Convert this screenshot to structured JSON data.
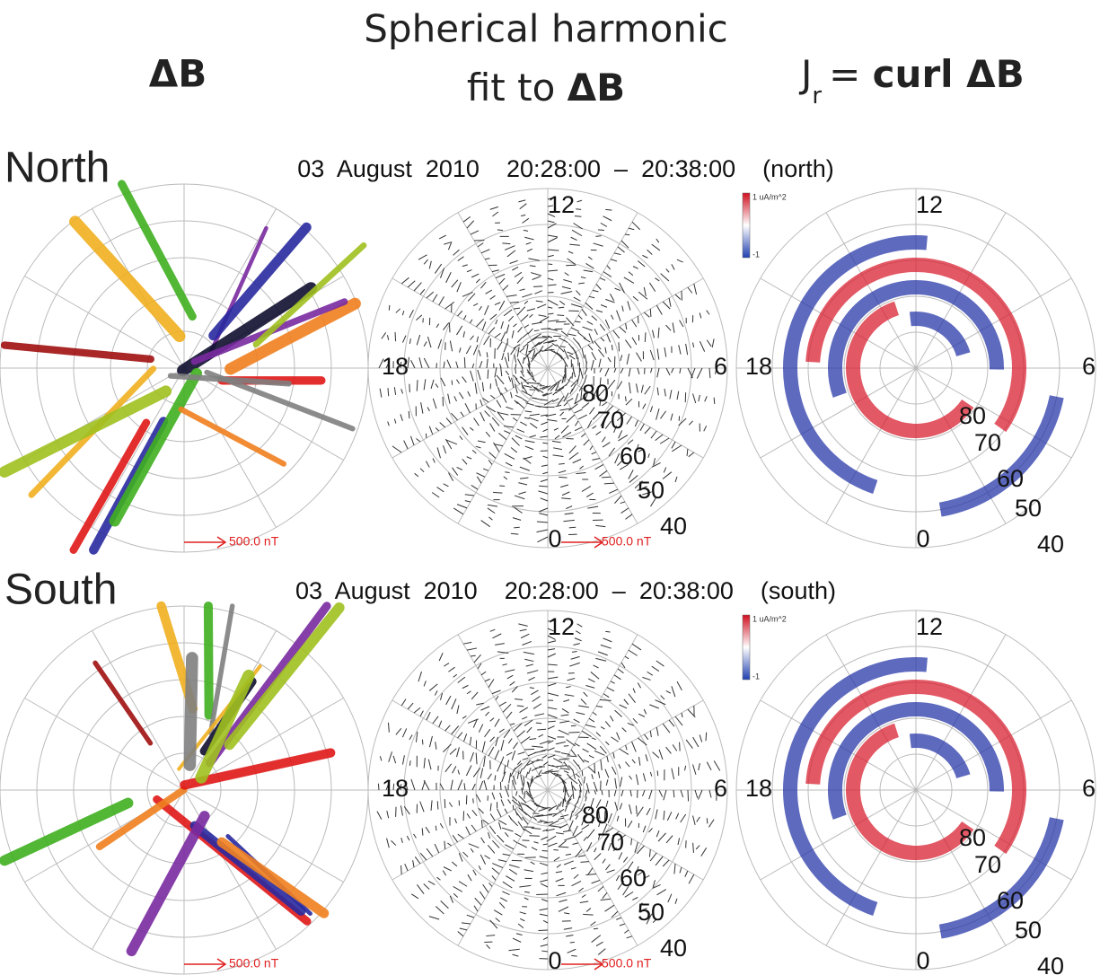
{
  "header": {
    "col1": "ΔB",
    "col2_line1": "Spherical harmonic",
    "col2_prefix": "fit to",
    "col2_bold": "ΔB",
    "col3_j": "J",
    "col3_sub": "r",
    "col3_eq": "=",
    "col3_bold": "curl ΔB"
  },
  "rows": [
    {
      "label": "North",
      "title": "03  August  2010    20:28:00  –  20:38:00    (north)",
      "scale": "500.0 nT",
      "colorbar": {
        "max": "1 uA/m^2",
        "min": "-1"
      },
      "mlt": [
        "12",
        "18",
        "6",
        "0"
      ],
      "lat": [
        "80",
        "70",
        "60",
        "50",
        "40"
      ]
    },
    {
      "label": "South",
      "title": "03  August  2010    20:28:00  –  20:38:00    (south)",
      "scale": "500.0 nT",
      "colorbar": {
        "max": "1 uA/m^2",
        "min": "-1"
      },
      "mlt": [
        "12",
        "18",
        "6",
        "0"
      ],
      "lat": [
        "80",
        "70",
        "60",
        "50",
        "40"
      ]
    }
  ]
}
